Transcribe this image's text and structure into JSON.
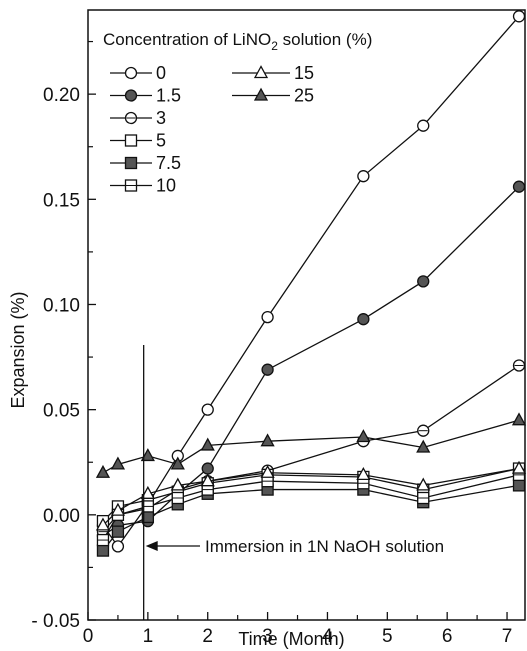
{
  "chart_data": {
    "type": "line",
    "xlabel": "Time (Month)",
    "ylabel": "Expansion (%)",
    "xlim": [
      0,
      7.3
    ],
    "ylim": [
      -0.05,
      0.24
    ],
    "xticks": [
      "0",
      "1",
      "2",
      "3",
      "4",
      "5",
      "6",
      "7"
    ],
    "yticks": [
      "- 0.05",
      "0.00",
      "0.05",
      "0.10",
      "0.15",
      "0.20"
    ],
    "legend": {
      "title_prefix": "Concentration of LiNO",
      "title_sub": "2",
      "title_suffix": " solution (%)",
      "placement": "top-left"
    },
    "annotation": {
      "text": "Immersion in 1N NaOH solution",
      "x": 0.93
    },
    "series": [
      {
        "name": "0",
        "marker": "circle-open",
        "x": [
          0.25,
          0.5,
          1,
          1.5,
          2,
          3,
          4.6,
          5.6,
          7.2
        ],
        "y": [
          -0.005,
          -0.015,
          0.005,
          0.028,
          0.05,
          0.094,
          0.161,
          0.185,
          0.237
        ]
      },
      {
        "name": "1.5",
        "marker": "circle-filled",
        "x": [
          0.25,
          0.5,
          1,
          1.5,
          2,
          3,
          4.6,
          5.6,
          7.2
        ],
        "y": [
          -0.01,
          -0.005,
          -0.003,
          0.01,
          0.022,
          0.069,
          0.093,
          0.111,
          0.156
        ]
      },
      {
        "name": "3",
        "marker": "circle-half",
        "x": [
          0.25,
          0.5,
          1,
          1.5,
          2,
          3,
          4.6,
          5.6,
          7.2
        ],
        "y": [
          -0.008,
          0.0,
          0.003,
          0.012,
          0.016,
          0.021,
          0.035,
          0.04,
          0.071
        ]
      },
      {
        "name": "5",
        "marker": "square-open",
        "x": [
          0.25,
          0.5,
          1,
          1.5,
          2,
          3,
          4.6,
          5.6,
          7.2
        ],
        "y": [
          -0.003,
          0.004,
          0.007,
          0.011,
          0.015,
          0.019,
          0.018,
          0.012,
          0.022
        ]
      },
      {
        "name": "7.5",
        "marker": "square-filled",
        "x": [
          0.25,
          0.5,
          1,
          1.5,
          2,
          3,
          4.6,
          5.6,
          7.2
        ],
        "y": [
          -0.017,
          -0.008,
          -0.001,
          0.005,
          0.01,
          0.012,
          0.012,
          0.006,
          0.014
        ]
      },
      {
        "name": "10",
        "marker": "square-half",
        "x": [
          0.25,
          0.5,
          1,
          1.5,
          2,
          3,
          4.6,
          5.6,
          7.2
        ],
        "y": [
          -0.012,
          0.0,
          0.004,
          0.008,
          0.012,
          0.016,
          0.015,
          0.008,
          0.019
        ]
      },
      {
        "name": "15",
        "marker": "triangle-open",
        "x": [
          0.25,
          0.5,
          1,
          1.5,
          2,
          3,
          4.6,
          5.6,
          7.2
        ],
        "y": [
          -0.005,
          0.002,
          0.01,
          0.014,
          0.016,
          0.02,
          0.019,
          0.014,
          0.022
        ]
      },
      {
        "name": "25",
        "marker": "triangle-filled",
        "x": [
          0.25,
          0.5,
          1,
          1.5,
          2,
          3,
          4.6,
          5.6,
          7.2
        ],
        "y": [
          0.02,
          0.024,
          0.028,
          0.024,
          0.033,
          0.035,
          0.037,
          0.032,
          0.045
        ]
      }
    ]
  }
}
